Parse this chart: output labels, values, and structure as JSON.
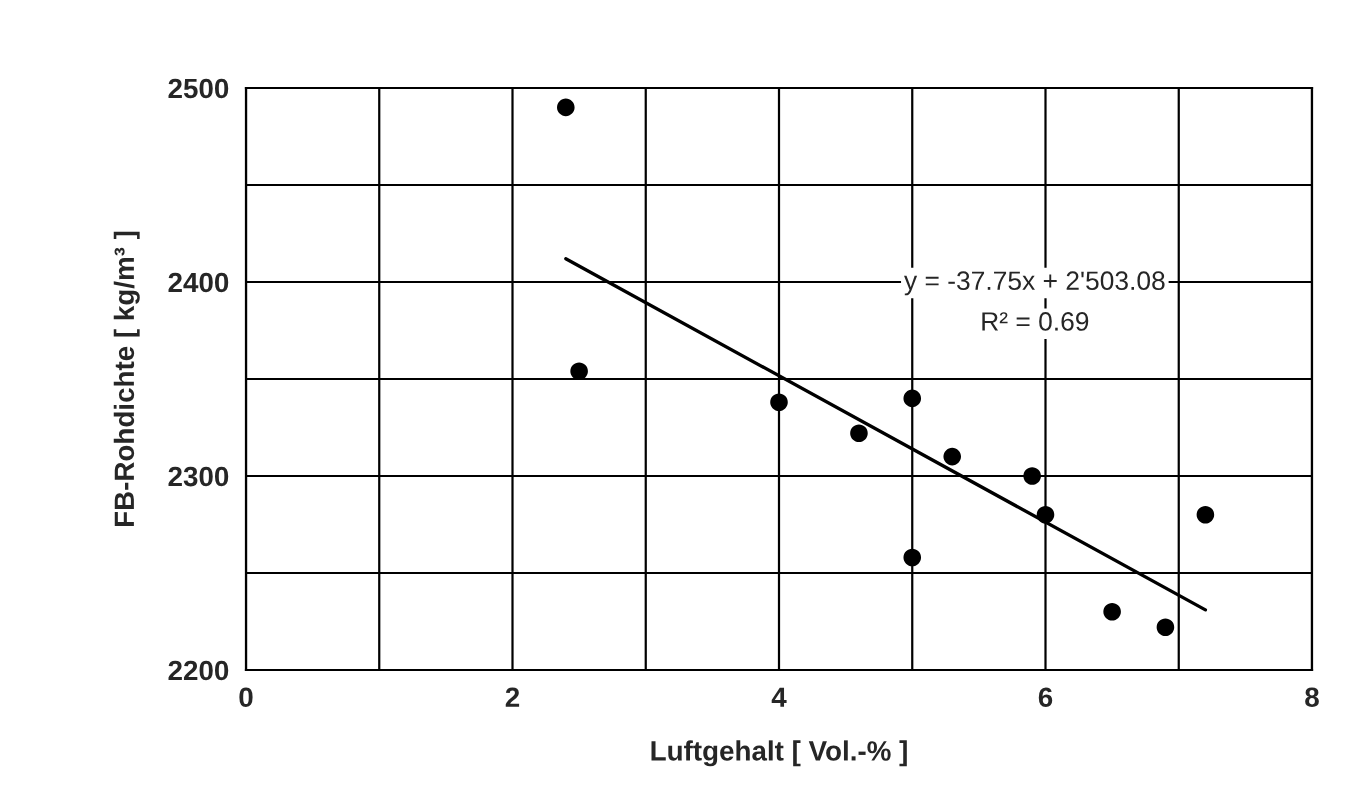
{
  "chart_data": {
    "type": "scatter",
    "xlabel": "Luftgehalt [ Vol.-% ]",
    "ylabel": "FB-Rohdichte [ kg/m³ ]",
    "xlim": [
      0,
      8
    ],
    "xticks": [
      0,
      {
        "value": 1,
        "label": null
      },
      2,
      {
        "value": 3,
        "label": null
      },
      4,
      {
        "value": 5,
        "label": null
      },
      6,
      {
        "value": 7,
        "label": null
      },
      8
    ],
    "ylim": [
      2200,
      2500
    ],
    "yticks": [
      2200,
      {
        "value": 2250,
        "label": null
      },
      2300,
      {
        "value": 2350,
        "label": null
      },
      2400,
      {
        "value": 2450,
        "label": null
      },
      2500
    ],
    "grid": true,
    "legend": false,
    "series": [
      {
        "color": "#000000",
        "marker": "circle",
        "x": [
          2.4,
          2.5,
          4.0,
          4.6,
          5.0,
          5.0,
          5.3,
          5.9,
          6.0,
          6.5,
          6.9,
          7.2
        ],
        "values": [
          2490,
          2354,
          2338,
          2322,
          2340,
          2258,
          2310,
          2300,
          2280,
          2230,
          2222,
          2280
        ]
      },
      {
        "type": "line",
        "color": "#000000",
        "line_style": "solid",
        "x": [
          2.4,
          7.2
        ],
        "values": [
          2412,
          2231
        ]
      }
    ],
    "annotations": [
      "y = -37.75x + 2'503.08",
      "R² = 0.69"
    ]
  }
}
